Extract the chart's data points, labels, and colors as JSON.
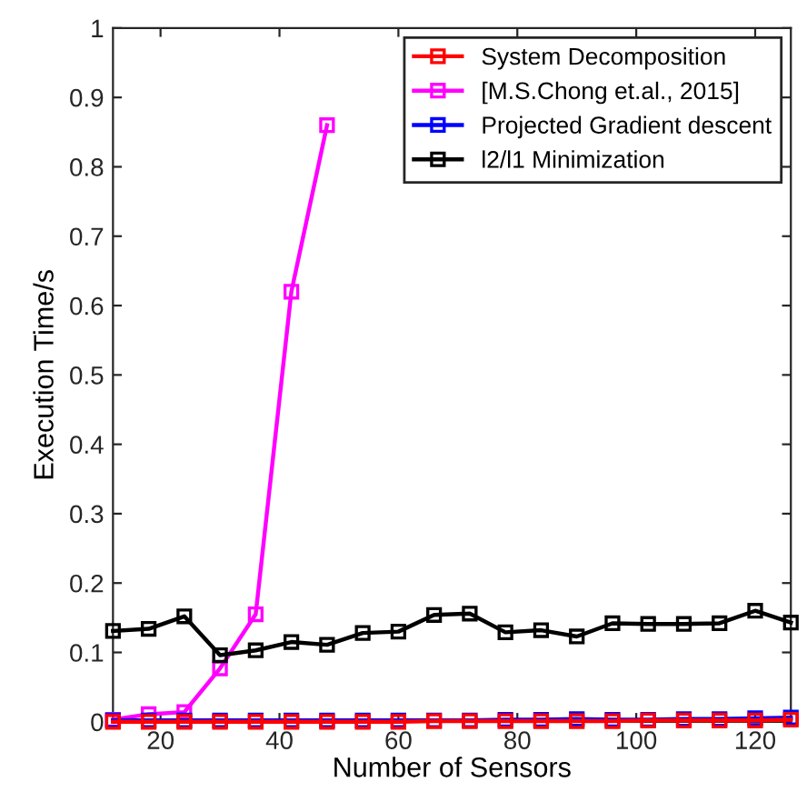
{
  "chart_data": {
    "type": "line",
    "xlabel": "Number of Sensors",
    "ylabel": "Execution Time/s",
    "x": [
      12,
      18,
      24,
      30,
      36,
      42,
      48,
      54,
      60,
      66,
      72,
      78,
      84,
      90,
      96,
      102,
      108,
      114,
      120,
      126
    ],
    "series": [
      {
        "name": "System Decomposition",
        "color": "#ff0000",
        "values": [
          0.0,
          0.0,
          0.0,
          0.0,
          0.0,
          0.0,
          0.0,
          0.0,
          0.0,
          0.001,
          0.001,
          0.001,
          0.001,
          0.001,
          0.001,
          0.002,
          0.002,
          0.002,
          0.002,
          0.003
        ]
      },
      {
        "name": "[M.S.Chong et.al., 2015]",
        "color": "#ff00ff",
        "values": [
          0.003,
          0.011,
          0.014,
          0.077,
          0.155,
          0.62,
          0.86,
          null,
          null,
          null,
          null,
          null,
          null,
          null,
          null,
          null,
          null,
          null,
          null,
          null
        ]
      },
      {
        "name": "Projected Gradient descent",
        "color": "#0000ff",
        "values": [
          0.002,
          0.002,
          0.002,
          0.002,
          0.002,
          0.002,
          0.002,
          0.002,
          0.002,
          0.002,
          0.002,
          0.003,
          0.003,
          0.004,
          0.003,
          0.003,
          0.004,
          0.004,
          0.005,
          0.006
        ]
      },
      {
        "name": "l2/l1 Minimization",
        "color": "#000000",
        "values": [
          0.131,
          0.134,
          0.152,
          0.096,
          0.103,
          0.115,
          0.111,
          0.128,
          0.13,
          0.154,
          0.156,
          0.129,
          0.132,
          0.123,
          0.142,
          0.141,
          0.141,
          0.142,
          0.16,
          0.143
        ]
      }
    ],
    "xlim": [
      12,
      126
    ],
    "xticks": [
      20,
      40,
      60,
      80,
      100,
      120
    ],
    "ylim": [
      0,
      1
    ],
    "yticks": [
      0,
      0.1,
      0.2,
      0.3,
      0.4,
      0.5,
      0.6,
      0.7,
      0.8,
      0.9,
      1
    ],
    "marker": "square",
    "line_style": "solid",
    "grid": false,
    "legend": "top right"
  }
}
